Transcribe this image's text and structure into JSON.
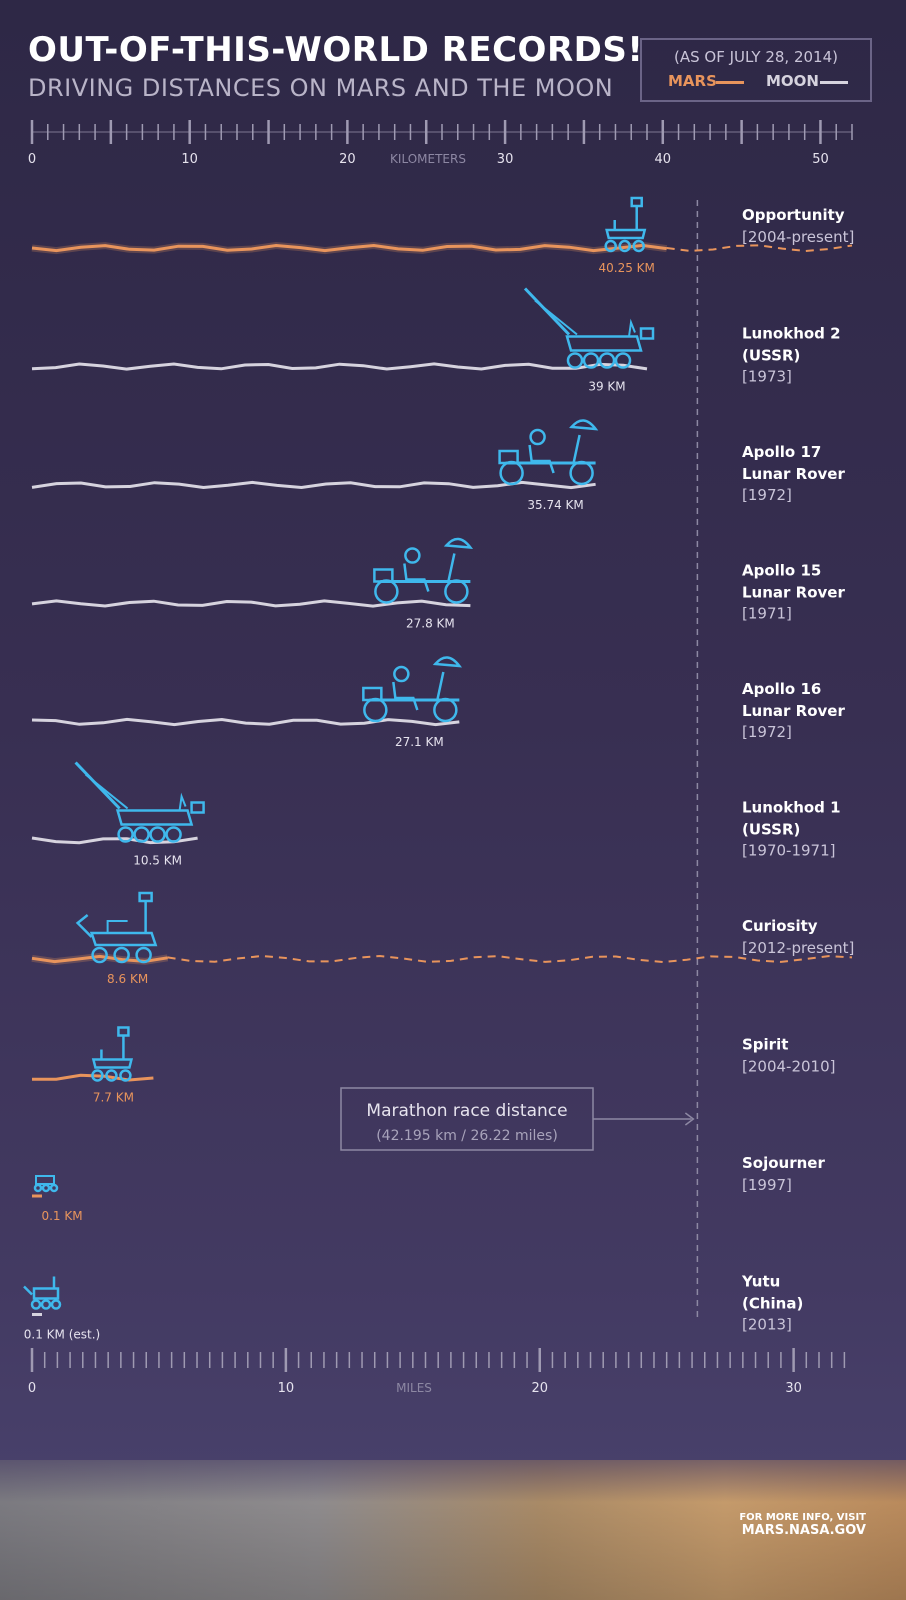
{
  "header": {
    "title": "OUT-OF-THIS-WORLD RECORDS!",
    "subtitle": "DRIVING DISTANCES ON MARS AND THE MOON"
  },
  "legend": {
    "date": "(AS OF JULY 28, 2014)",
    "mars_label": "MARS",
    "moon_label": "MOON"
  },
  "colors": {
    "mars": "#e8945c",
    "moon": "#d6d3de",
    "rover": "#3fb8ec",
    "axis": "#9f9ab2",
    "marathon": "#8d88a3"
  },
  "marathon": {
    "label": "Marathon race distance",
    "detail": "(42.195 km / 26.22 miles)",
    "km": 42.195
  },
  "credit": {
    "line1": "FOR MORE INFO, VISIT",
    "line2": "MARS.NASA.GOV"
  },
  "chart_data": {
    "type": "bar",
    "top_axis": {
      "label": "KILOMETERS",
      "ticks": [
        0,
        10,
        20,
        30,
        40,
        50
      ],
      "range": [
        0,
        52
      ]
    },
    "bottom_axis": {
      "label": "MILES",
      "ticks": [
        0,
        10,
        20,
        30
      ],
      "range": [
        0,
        32.3
      ]
    },
    "series": [
      {
        "name": "MARS",
        "color": "mars"
      },
      {
        "name": "MOON",
        "color": "moon"
      }
    ],
    "rovers": [
      {
        "name": "Opportunity",
        "sublines": [
          "[2004-present]"
        ],
        "km": 40.25,
        "label": "40.25 KM",
        "body": "Mars",
        "active": true,
        "icon": "mer"
      },
      {
        "name": "Lunokhod 2",
        "sublines": [
          "(USSR)",
          "[1973]"
        ],
        "km": 39,
        "label": "39 KM",
        "body": "Moon",
        "active": false,
        "icon": "lunokhod"
      },
      {
        "name": "Apollo 17",
        "sublines": [
          "Lunar Rover",
          "[1972]"
        ],
        "km": 35.74,
        "label": "35.74 KM",
        "body": "Moon",
        "active": false,
        "icon": "lrv"
      },
      {
        "name": "Apollo 15",
        "sublines": [
          "Lunar Rover",
          "[1971]"
        ],
        "km": 27.8,
        "label": "27.8 KM",
        "body": "Moon",
        "active": false,
        "icon": "lrv"
      },
      {
        "name": "Apollo 16",
        "sublines": [
          "Lunar Rover",
          "[1972]"
        ],
        "km": 27.1,
        "label": "27.1 KM",
        "body": "Moon",
        "active": false,
        "icon": "lrv"
      },
      {
        "name": "Lunokhod 1",
        "sublines": [
          "(USSR)",
          "[1970-1971]"
        ],
        "km": 10.5,
        "label": "10.5 KM",
        "body": "Moon",
        "active": false,
        "icon": "lunokhod"
      },
      {
        "name": "Curiosity",
        "sublines": [
          "[2012-present]"
        ],
        "km": 8.6,
        "label": "8.6 KM",
        "body": "Mars",
        "active": true,
        "icon": "curiosity"
      },
      {
        "name": "Spirit",
        "sublines": [
          "[2004-2010]"
        ],
        "km": 7.7,
        "label": "7.7 KM",
        "body": "Mars",
        "active": false,
        "icon": "mer"
      },
      {
        "name": "Sojourner",
        "sublines": [
          "[1997]"
        ],
        "km": 0.1,
        "label": "0.1 KM",
        "body": "Mars",
        "active": false,
        "icon": "sojourner"
      },
      {
        "name": "Yutu",
        "sublines": [
          "(China)",
          "[2013]"
        ],
        "km": 0.1,
        "label": "0.1 KM (est.)",
        "body": "Moon",
        "active": false,
        "icon": "yutu"
      }
    ]
  }
}
